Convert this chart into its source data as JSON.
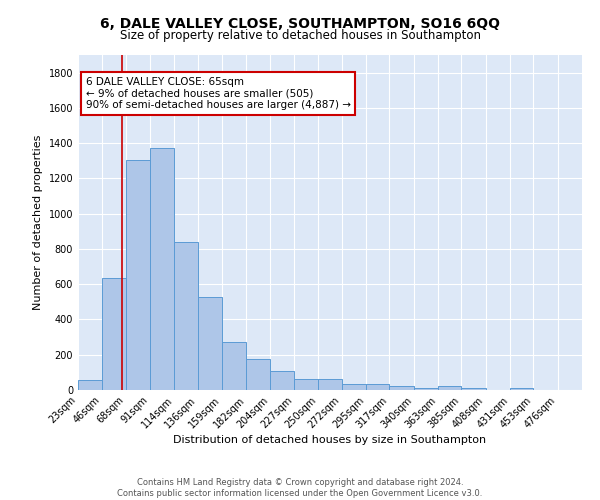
{
  "title": "6, DALE VALLEY CLOSE, SOUTHAMPTON, SO16 6QQ",
  "subtitle": "Size of property relative to detached houses in Southampton",
  "xlabel": "Distribution of detached houses by size in Southampton",
  "ylabel": "Number of detached properties",
  "footer_line1": "Contains HM Land Registry data © Crown copyright and database right 2024.",
  "footer_line2": "Contains public sector information licensed under the Open Government Licence v3.0.",
  "annotation_line1": "6 DALE VALLEY CLOSE: 65sqm",
  "annotation_line2": "← 9% of detached houses are smaller (505)",
  "annotation_line3": "90% of semi-detached houses are larger (4,887) →",
  "red_line_x": 65,
  "categories": [
    "23sqm",
    "46sqm",
    "68sqm",
    "91sqm",
    "114sqm",
    "136sqm",
    "159sqm",
    "182sqm",
    "204sqm",
    "227sqm",
    "250sqm",
    "272sqm",
    "295sqm",
    "317sqm",
    "340sqm",
    "363sqm",
    "385sqm",
    "408sqm",
    "431sqm",
    "453sqm",
    "476sqm"
  ],
  "bin_edges": [
    23,
    46,
    68,
    91,
    114,
    136,
    159,
    182,
    204,
    227,
    250,
    272,
    295,
    317,
    340,
    363,
    385,
    408,
    431,
    453,
    476,
    499
  ],
  "values": [
    55,
    635,
    1305,
    1370,
    840,
    525,
    275,
    175,
    105,
    65,
    65,
    35,
    35,
    20,
    10,
    20,
    10,
    0,
    10,
    0,
    0
  ],
  "bar_color": "#aec6e8",
  "bar_edge_color": "#5b9bd5",
  "red_line_color": "#cc0000",
  "background_color": "#dde8f7",
  "ylim": [
    0,
    1900
  ],
  "yticks": [
    0,
    200,
    400,
    600,
    800,
    1000,
    1200,
    1400,
    1600,
    1800
  ],
  "title_fontsize": 10,
  "subtitle_fontsize": 8.5,
  "xlabel_fontsize": 8,
  "ylabel_fontsize": 8,
  "tick_fontsize": 7,
  "footer_fontsize": 6,
  "annotation_fontsize": 7.5
}
